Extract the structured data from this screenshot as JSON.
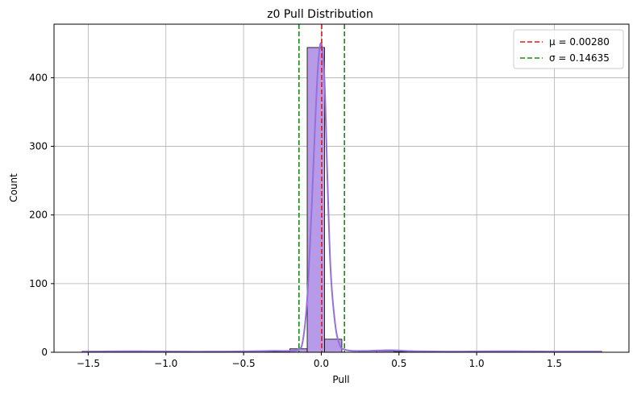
{
  "chart_data": {
    "type": "histogram",
    "title": "z0 Pull Distribution",
    "xlabel": "Pull",
    "ylabel": "Count",
    "xlim": [
      -1.72,
      1.98
    ],
    "ylim": [
      0,
      478
    ],
    "grid": true,
    "legend_position": "top-right",
    "x_ticks": [
      -1.5,
      -1.0,
      -0.5,
      0.0,
      0.5,
      1.0,
      1.5
    ],
    "x_tick_labels": [
      "−1.5",
      "−1.0",
      "−0.5",
      "0.0",
      "0.5",
      "1.0",
      "1.5"
    ],
    "y_ticks": [
      0,
      100,
      200,
      300,
      400
    ],
    "y_tick_labels": [
      "0",
      "100",
      "200",
      "300",
      "400"
    ],
    "bin_edges": [
      -1.54,
      -1.4285,
      -1.317,
      -1.2055,
      -1.094,
      -0.9825,
      -0.871,
      -0.7595,
      -0.648,
      -0.5365,
      -0.425,
      -0.3135,
      -0.202,
      -0.0905,
      0.021,
      0.1325,
      0.244,
      0.3555,
      0.467,
      0.5785,
      0.69,
      0.8015,
      0.913,
      1.0245,
      1.136,
      1.2475,
      1.359,
      1.4705,
      1.582,
      1.6935,
      1.805
    ],
    "bin_counts": [
      1,
      0,
      1,
      0,
      0,
      0,
      0,
      0,
      0,
      0,
      1,
      1,
      5,
      444,
      19,
      0,
      2,
      2,
      1,
      0,
      0,
      0,
      0,
      0,
      1,
      0,
      0,
      0,
      0,
      1
    ],
    "kde": {
      "x": [
        -1.54,
        -1.2,
        -0.9,
        -0.6,
        -0.45,
        -0.3,
        -0.2,
        -0.15,
        -0.12,
        -0.09,
        -0.06,
        -0.04,
        -0.02,
        0.0,
        0.02,
        0.04,
        0.06,
        0.09,
        0.12,
        0.15,
        0.2,
        0.3,
        0.45,
        0.6,
        0.9,
        1.2,
        1.5,
        1.805
      ],
      "y": [
        1,
        1.5,
        1,
        1,
        1.5,
        2,
        2,
        4,
        15,
        80,
        220,
        330,
        420,
        450,
        400,
        250,
        120,
        40,
        10,
        4,
        2,
        2,
        3,
        1.5,
        1,
        1.5,
        1,
        1
      ]
    },
    "vlines": [
      {
        "x": 0.0028,
        "color": "#e31a1c",
        "style": "dashed",
        "label": "μ = 0.00280"
      },
      {
        "x": -0.14355,
        "color": "#1a8a1a",
        "style": "dashed",
        "label": "σ = 0.14635"
      },
      {
        "x": 0.14915,
        "color": "#1a8a1a",
        "style": "dashed"
      }
    ],
    "legend": [
      {
        "label": "μ = 0.00280",
        "color": "#e31a1c"
      },
      {
        "label": "σ = 0.14635",
        "color": "#1a8a1a"
      }
    ],
    "bar_fill": "#b79be8",
    "bar_edge": "#000000",
    "kde_color": "#9370db"
  }
}
